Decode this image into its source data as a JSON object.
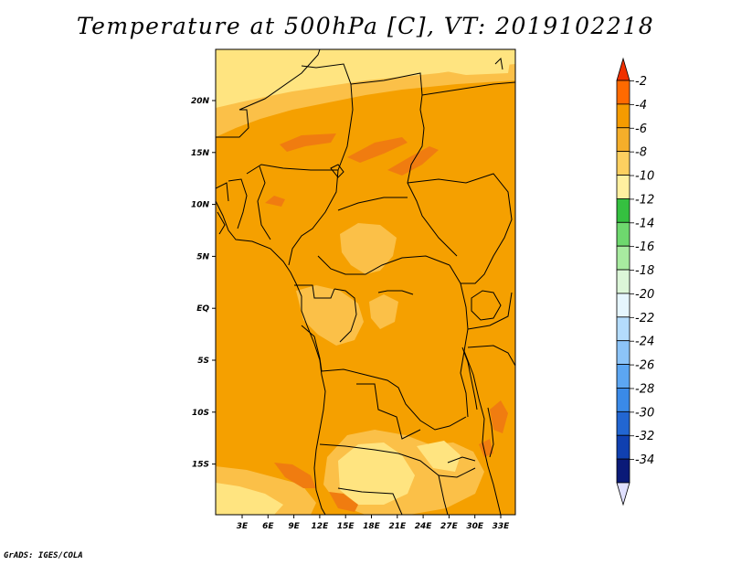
{
  "title": "Temperature at 500hPa [C], VT: 2019102218",
  "footer": "GrADS: IGES/COLA",
  "colors": {
    "ocean_base": "#f5a000",
    "land_base": "#f5a000",
    "warm_patch": "#f07c10",
    "cool_patch": "#fbc048",
    "pale_patch": "#ffe480",
    "border": "#000000"
  },
  "map": {
    "lon_labels": [
      "3E",
      "6E",
      "9E",
      "12E",
      "15E",
      "18E",
      "21E",
      "24E",
      "27E",
      "30E",
      "33E"
    ],
    "lat_labels": [
      "20N",
      "15N",
      "10N",
      "5N",
      "EQ",
      "5S",
      "10S",
      "15S"
    ]
  },
  "colorbar": {
    "labels": [
      "-2",
      "-4",
      "-6",
      "-8",
      "-10",
      "-12",
      "-14",
      "-16",
      "-18",
      "-20",
      "-22",
      "-24",
      "-26",
      "-28",
      "-30",
      "-32",
      "-34"
    ],
    "colors": [
      "#ff6a00",
      "#f59b00",
      "#f5ae2a",
      "#fdd060",
      "#fff0a0",
      "#35c040",
      "#6ed86e",
      "#a8eba0",
      "#dcf6d8",
      "#e6f6fe",
      "#b4dcfc",
      "#8cc4f8",
      "#5ca6f2",
      "#3a8ae8",
      "#2266d2",
      "#1040b0",
      "#0a1a78"
    ],
    "top_arrow_color": "#f03000",
    "bottom_arrow_color": "#e0e0ff"
  }
}
